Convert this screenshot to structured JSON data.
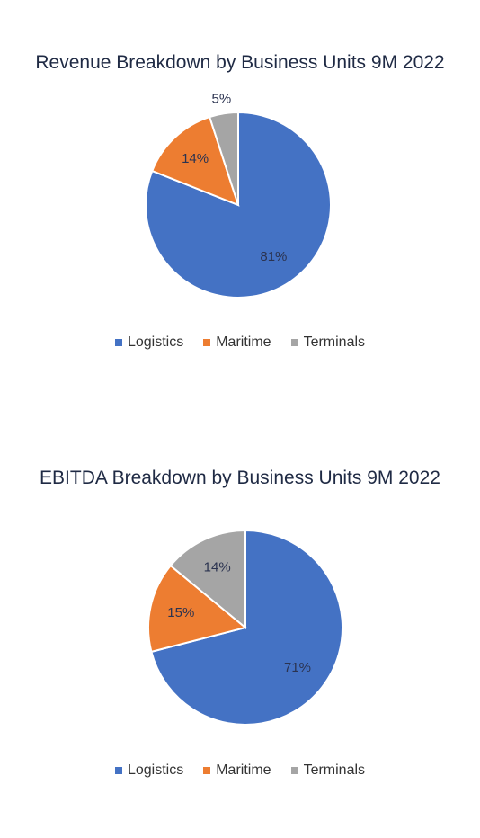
{
  "chart_data": [
    {
      "type": "pie",
      "title": "Revenue Breakdown by Business Units 9M 2022",
      "categories": [
        "Logistics",
        "Maritime",
        "Terminals"
      ],
      "values": [
        81,
        14,
        5
      ],
      "labels": [
        "81%",
        "14%",
        "5%"
      ],
      "colors": [
        "#4472c4",
        "#ed7d31",
        "#a5a5a5"
      ],
      "legend": "bottom"
    },
    {
      "type": "pie",
      "title": "EBITDA Breakdown by Business Units 9M 2022",
      "categories": [
        "Logistics",
        "Maritime",
        "Terminals"
      ],
      "values": [
        71,
        15,
        14
      ],
      "labels": [
        "71%",
        "15%",
        "14%"
      ],
      "colors": [
        "#4472c4",
        "#ed7d31",
        "#a5a5a5"
      ],
      "legend": "bottom"
    }
  ]
}
